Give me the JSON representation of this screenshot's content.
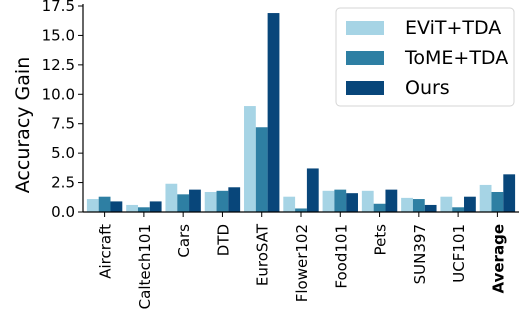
{
  "chart_data": {
    "type": "bar",
    "title": "",
    "xlabel": "",
    "ylabel": "Accuracy Gain",
    "ylim": [
      0,
      17.5
    ],
    "yticks": [
      "0.0",
      "2.5",
      "5.0",
      "7.5",
      "10.0",
      "12.5",
      "15.0",
      "17.5"
    ],
    "categories": [
      "Aircraft",
      "Caltech101",
      "Cars",
      "DTD",
      "EuroSAT",
      "Flower102",
      "Food101",
      "Pets",
      "SUN397",
      "UCF101",
      "Average"
    ],
    "bold_categories": [
      "Average"
    ],
    "grid": false,
    "legend_position": "top-right",
    "series": [
      {
        "name": "EViT+TDA",
        "color": "#a6d4e5",
        "values": [
          1.1,
          0.6,
          2.4,
          1.7,
          9.0,
          1.3,
          1.8,
          1.8,
          1.2,
          1.3,
          2.3
        ]
      },
      {
        "name": "ToME+TDA",
        "color": "#2e7fa3",
        "values": [
          1.3,
          0.4,
          1.5,
          1.8,
          7.2,
          0.3,
          1.9,
          0.7,
          1.1,
          0.4,
          1.7
        ]
      },
      {
        "name": "Ours",
        "color": "#08467a",
        "values": [
          0.9,
          0.9,
          1.9,
          2.1,
          16.9,
          3.7,
          1.6,
          1.9,
          0.6,
          1.3,
          3.2
        ]
      }
    ]
  }
}
